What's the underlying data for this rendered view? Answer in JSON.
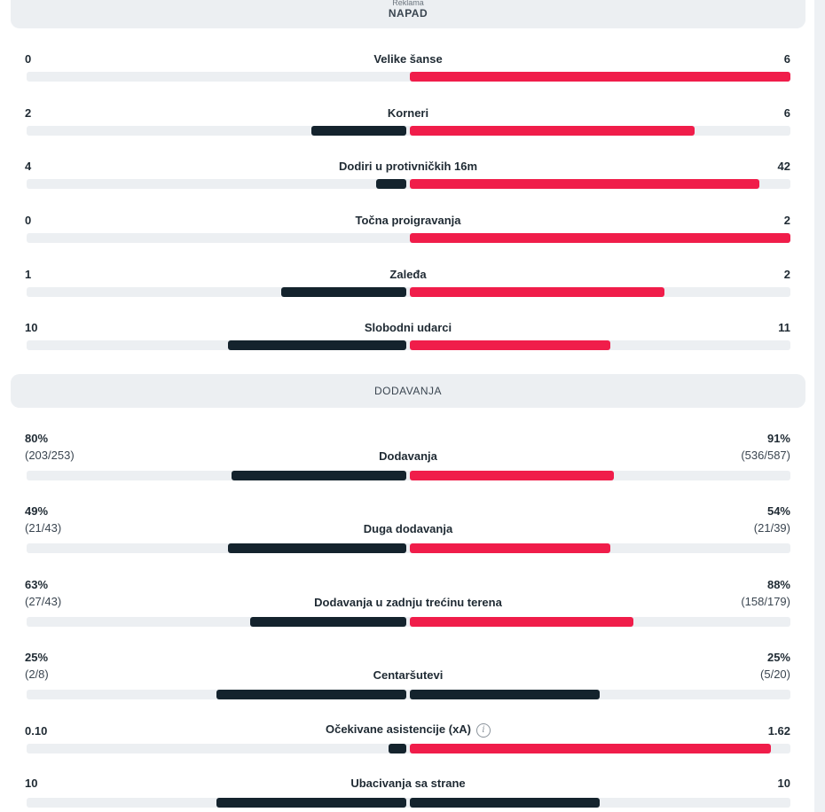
{
  "sections": {
    "attack": {
      "ad_label": "Reklama",
      "title": "NAPAD"
    },
    "passing": {
      "title": "DODAVANJA"
    }
  },
  "attack_stats": [
    {
      "label": "Velike šanse",
      "home": "0",
      "away": "6",
      "home_share": 0.0,
      "away_share": 1.0
    },
    {
      "label": "Korneri",
      "home": "2",
      "away": "6",
      "home_share": 0.25,
      "away_share": 0.75
    },
    {
      "label": "Dodiri u protivničkih 16m",
      "home": "4",
      "away": "42",
      "home_share": 0.087,
      "away_share": 0.913
    },
    {
      "label": "Točna proigravanja",
      "home": "0",
      "away": "2",
      "home_share": 0.0,
      "away_share": 1.0
    },
    {
      "label": "Zaleđa",
      "home": "1",
      "away": "2",
      "home_share": 0.333,
      "away_share": 0.667
    },
    {
      "label": "Slobodni udarci",
      "home": "10",
      "away": "11",
      "home_share": 0.476,
      "away_share": 0.524
    }
  ],
  "passing_stats": [
    {
      "label": "Dodavanja",
      "home": "80%",
      "home_detail": "(203/253)",
      "away": "91%",
      "away_detail": "(536/587)",
      "home_share": 0.468,
      "away_share": 0.532
    },
    {
      "label": "Duga dodavanja",
      "home": "49%",
      "home_detail": "(21/43)",
      "away": "54%",
      "away_detail": "(21/39)",
      "home_share": 0.476,
      "away_share": 0.524
    },
    {
      "label": "Dodavanja u zadnju trećinu terena",
      "home": "63%",
      "home_detail": "(27/43)",
      "away": "88%",
      "away_detail": "(158/179)",
      "home_share": 0.417,
      "away_share": 0.583
    },
    {
      "label": "Centaršutevi",
      "home": "25%",
      "home_detail": "(2/8)",
      "away": "25%",
      "away_detail": "(5/20)",
      "home_share": 0.5,
      "away_share": 0.5,
      "equal": true
    },
    {
      "label": "Očekivane asistencije (xA)",
      "home": "0.10",
      "away": "1.62",
      "home_share": 0.058,
      "away_share": 0.942,
      "info_icon": "info-icon"
    },
    {
      "label": "Ubacivanja sa strane",
      "home": "10",
      "away": "10",
      "home_share": 0.5,
      "away_share": 0.5,
      "equal": true
    }
  ],
  "colors": {
    "home": "#14232d",
    "away": "#f01d4a",
    "track": "#eceff2"
  }
}
